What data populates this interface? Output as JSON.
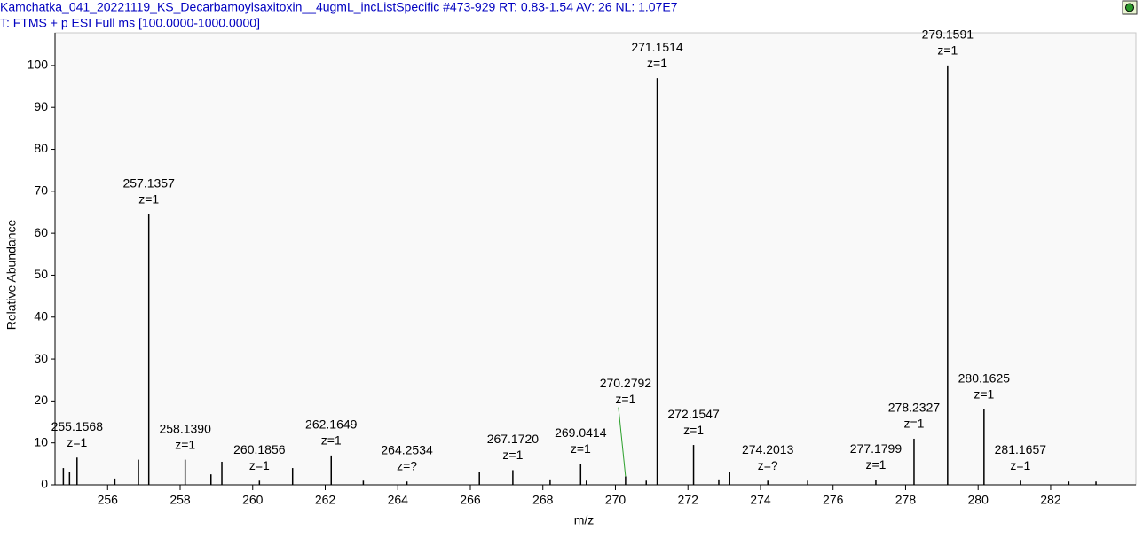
{
  "chart_data": {
    "type": "spectrum",
    "title": "Kamchatka_041_20221119_KS_Decarbamoylsaxitoxin__4ugmL_incListSpecific #473-929   RT: 0.83-1.54   AV: 26   NL: 1.07E7",
    "subtitle": "T: FTMS + p ESI Full ms [100.0000-1000.0000]",
    "x_label": "m/z",
    "y_label": "Relative Abundance",
    "color": "#000000",
    "x": [
      254.78,
      254.95,
      255.1568,
      256.2,
      256.85,
      257.1357,
      258.139,
      258.85,
      259.15,
      260.1856,
      261.1,
      262.1649,
      263.05,
      264.2534,
      266.25,
      267.172,
      268.2,
      269.0414,
      269.2,
      270.2792,
      270.85,
      271.1514,
      272.1547,
      272.85,
      273.15,
      274.2013,
      275.3,
      277.1799,
      278.2327,
      279.1591,
      280.1625,
      281.1657,
      282.5,
      283.25
    ],
    "values": [
      4,
      3,
      6.5,
      1.5,
      6,
      64.5,
      6,
      2.5,
      5.5,
      1,
      4,
      7,
      1,
      0.8,
      3,
      3.5,
      1.3,
      5,
      1,
      2,
      1,
      97,
      9.5,
      1.3,
      3,
      1,
      1,
      1.2,
      11,
      100,
      18,
      1,
      0.8,
      0.8
    ],
    "x_labels": [
      null,
      null,
      "255.1568",
      null,
      null,
      "257.1357",
      "258.1390",
      null,
      null,
      "260.1856",
      null,
      "262.1649",
      null,
      "264.2534",
      null,
      "267.1720",
      null,
      "269.0414",
      null,
      "270.2792",
      null,
      "271.1514",
      "272.1547",
      null,
      null,
      "274.2013",
      null,
      "277.1799",
      "278.2327",
      "279.1591",
      "280.1625",
      "281.1657",
      null,
      null
    ],
    "charges": [
      null,
      null,
      "z=1",
      null,
      null,
      "z=1",
      "z=1",
      null,
      null,
      "z=1",
      null,
      "z=1",
      null,
      "z=?",
      null,
      "z=1",
      null,
      "z=1",
      null,
      "z=1",
      null,
      "z=1",
      "z=1",
      null,
      null,
      "z=?",
      null,
      "z=1",
      "z=1",
      "z=1",
      "z=1",
      "z=1",
      null,
      null
    ],
    "xlim": [
      254.55,
      284.35
    ],
    "ylim": [
      0,
      107.8
    ],
    "xticks": [
      256,
      258,
      260,
      262,
      264,
      266,
      268,
      270,
      272,
      274,
      276,
      278,
      280,
      282
    ],
    "yticks": [
      0,
      10,
      20,
      30,
      40,
      50,
      60,
      70,
      80,
      90,
      100
    ]
  }
}
